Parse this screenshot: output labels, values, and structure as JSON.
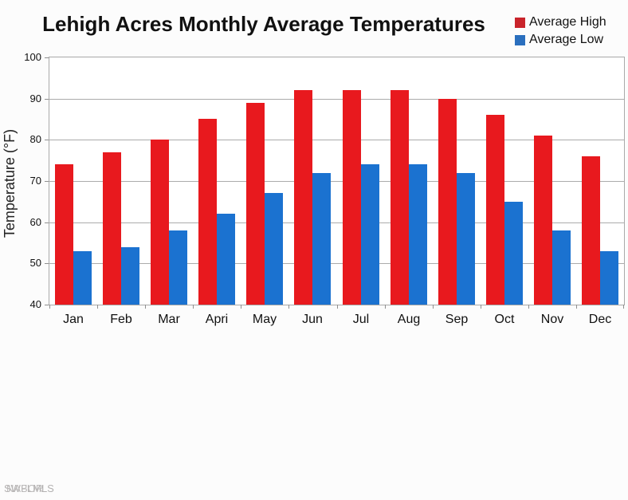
{
  "chart_data": {
    "type": "bar",
    "title": "Lehigh Acres Monthly Average Temperatures",
    "ylabel": "Temperature (°F)",
    "xlabel": "",
    "categories": [
      "Jan",
      "Feb",
      "Mar",
      "Apri",
      "May",
      "Jun",
      "Jul",
      "Aug",
      "Sep",
      "Oct",
      "Nov",
      "Dec"
    ],
    "series": [
      {
        "name": "Average High",
        "color": "#e8191e",
        "legend_color": "#c9242b",
        "values": [
          74,
          77,
          80,
          85,
          89,
          92,
          92,
          92,
          90,
          86,
          81,
          76
        ]
      },
      {
        "name": "Average Low",
        "color": "#1b72d0",
        "legend_color": "#2a6fbe",
        "values": [
          53,
          54,
          58,
          62,
          67,
          72,
          74,
          74,
          72,
          65,
          58,
          53
        ]
      }
    ],
    "ylim": [
      40,
      100
    ],
    "yticks": [
      100,
      90,
      80,
      70,
      60,
      50,
      40
    ],
    "grid": "horizontal",
    "legend_position": "top-right"
  },
  "watermark": {
    "layer1": "SWFLMLS",
    "layer2": "NABOR"
  }
}
